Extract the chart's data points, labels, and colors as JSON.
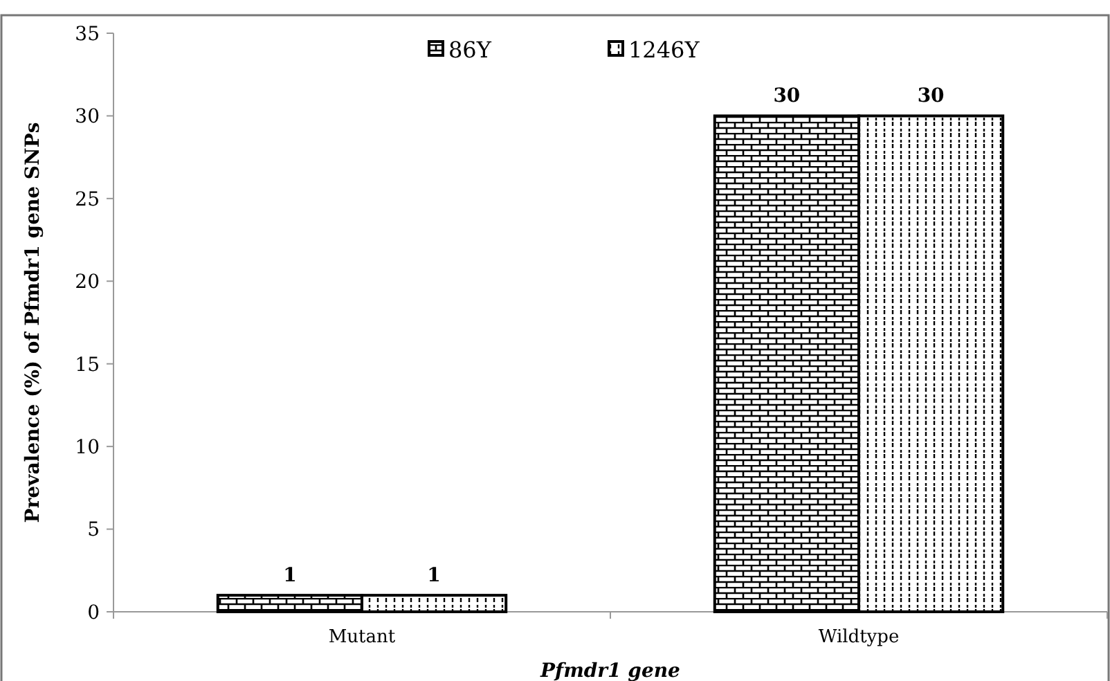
{
  "chart_data": {
    "type": "bar",
    "xlabel": "Pfmdr1 gene",
    "ylabel": "Prevalence (%) of Pfmdr1 gene SNPs",
    "categories": [
      "Mutant",
      "Wildtype"
    ],
    "series": [
      {
        "name": "86Y",
        "color": "#000000",
        "values": [
          1,
          30
        ]
      },
      {
        "name": "1246Y",
        "color": "#000000",
        "values": [
          1,
          30
        ]
      }
    ],
    "ylim": [
      0,
      35
    ],
    "yticks": [
      0,
      5,
      10,
      15,
      20,
      25,
      30,
      35
    ],
    "data_labels": true,
    "legend": "top",
    "grid": false
  }
}
